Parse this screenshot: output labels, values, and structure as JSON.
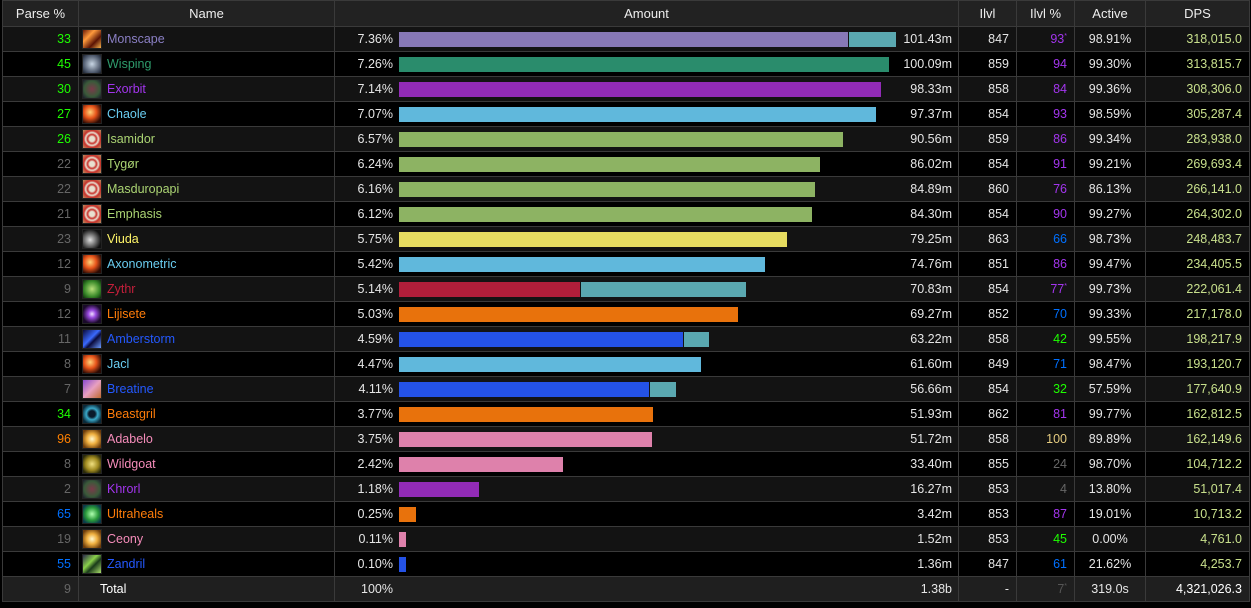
{
  "colors": {
    "parse_gray": "#666666",
    "parse_green": "#1eff00",
    "parse_blue": "#0070ff",
    "parse_purple": "#a335ee",
    "parse_orange": "#ff8000",
    "parse_gold": "#e5cc80",
    "dps_text": "#c8e08c",
    "pet_segment": "#5aa8b0"
  },
  "header": {
    "parse": "Parse %",
    "name": "Name",
    "amount": "Amount",
    "ilvl": "Ilvl",
    "ilvl_pct": "Ilvl %",
    "active": "Active",
    "dps": "DPS"
  },
  "max_bar_value": 101.43,
  "rows": [
    {
      "parse": "33",
      "parse_color": "#1eff00",
      "name": "Monscape",
      "name_color": "#8a7fc4",
      "icon": "fire-streak-icon",
      "icon_bg": "linear-gradient(135deg,#6b1a06,#ff9a3c,#5a1304,#f6b04a)",
      "pct": "7.36%",
      "segments": [
        {
          "value": 91.7,
          "color": "#8778b6"
        },
        {
          "value": 9.73,
          "color": "#5aa8b0"
        }
      ],
      "amount": "101.43m",
      "ilvl": "847",
      "ilvl_pct": "93",
      "ilvl_pct_color": "#a335ee",
      "ilvl_mark": "*",
      "active": "98.91%",
      "dps": "318,015.0"
    },
    {
      "parse": "45",
      "parse_color": "#1eff00",
      "name": "Wisping",
      "name_color": "#2e9b6c",
      "icon": "beast-face-icon",
      "icon_bg": "radial-gradient(circle,#c9d6e4,#4a5568 70%,#1a202c)",
      "pct": "7.26%",
      "segments": [
        {
          "value": 100.09,
          "color": "#2a8c6c"
        }
      ],
      "amount": "100.09m",
      "ilvl": "859",
      "ilvl_pct": "94",
      "ilvl_pct_color": "#a335ee",
      "ilvl_mark": "",
      "active": "99.30%",
      "dps": "313,815.7"
    },
    {
      "parse": "30",
      "parse_color": "#1eff00",
      "name": "Exorbit",
      "name_color": "#a335ee",
      "icon": "demon-face-icon",
      "icon_bg": "radial-gradient(circle,#7a3a4a,#3a5a3a 60%,#1a1a2a)",
      "pct": "7.14%",
      "segments": [
        {
          "value": 98.33,
          "color": "#922bb7"
        }
      ],
      "amount": "98.33m",
      "ilvl": "858",
      "ilvl_pct": "84",
      "ilvl_pct_color": "#a335ee",
      "ilvl_mark": "",
      "active": "99.36%",
      "dps": "308,306.0"
    },
    {
      "parse": "27",
      "parse_color": "#1eff00",
      "name": "Chaole",
      "name_color": "#69ccf0",
      "icon": "fireball-icon",
      "icon_bg": "radial-gradient(circle at 40% 40%,#ffd27a,#e8541a 40%,#2a0a04 80%)",
      "pct": "7.07%",
      "segments": [
        {
          "value": 97.37,
          "color": "#60b8dc"
        }
      ],
      "amount": "97.37m",
      "ilvl": "854",
      "ilvl_pct": "93",
      "ilvl_pct_color": "#a335ee",
      "ilvl_mark": "",
      "active": "98.59%",
      "dps": "305,287.4"
    },
    {
      "parse": "26",
      "parse_color": "#1eff00",
      "name": "Isamidor",
      "name_color": "#abd473",
      "icon": "target-icon",
      "icon_bg": "radial-gradient(circle,#e8e0d0 20%,#c8302a 35%,#e8e0d0 50%,#c8302a 65%,#b89060)",
      "pct": "6.57%",
      "segments": [
        {
          "value": 90.56,
          "color": "#8db363"
        }
      ],
      "amount": "90.56m",
      "ilvl": "859",
      "ilvl_pct": "86",
      "ilvl_pct_color": "#a335ee",
      "ilvl_mark": "",
      "active": "99.34%",
      "dps": "283,938.0"
    },
    {
      "parse": "22",
      "parse_color": "#666666",
      "name": "Tygør",
      "name_color": "#abd473",
      "icon": "target-icon",
      "icon_bg": "radial-gradient(circle,#e8e0d0 20%,#c8302a 35%,#e8e0d0 50%,#c8302a 65%,#b89060)",
      "pct": "6.24%",
      "segments": [
        {
          "value": 86.02,
          "color": "#8db363"
        }
      ],
      "amount": "86.02m",
      "ilvl": "854",
      "ilvl_pct": "91",
      "ilvl_pct_color": "#a335ee",
      "ilvl_mark": "",
      "active": "99.21%",
      "dps": "269,693.4"
    },
    {
      "parse": "22",
      "parse_color": "#666666",
      "name": "Masduropapi",
      "name_color": "#abd473",
      "icon": "target-icon",
      "icon_bg": "radial-gradient(circle,#e8e0d0 20%,#c8302a 35%,#e8e0d0 50%,#c8302a 65%,#b89060)",
      "pct": "6.16%",
      "segments": [
        {
          "value": 84.89,
          "color": "#8db363"
        }
      ],
      "amount": "84.89m",
      "ilvl": "860",
      "ilvl_pct": "76",
      "ilvl_pct_color": "#a335ee",
      "ilvl_mark": "",
      "active": "86.13%",
      "dps": "266,141.0"
    },
    {
      "parse": "21",
      "parse_color": "#666666",
      "name": "Emphasis",
      "name_color": "#abd473",
      "icon": "target-icon",
      "icon_bg": "radial-gradient(circle,#e8e0d0 20%,#c8302a 35%,#e8e0d0 50%,#c8302a 65%,#b89060)",
      "pct": "6.12%",
      "segments": [
        {
          "value": 84.3,
          "color": "#8db363"
        }
      ],
      "amount": "84.30m",
      "ilvl": "854",
      "ilvl_pct": "90",
      "ilvl_pct_color": "#a335ee",
      "ilvl_mark": "",
      "active": "99.27%",
      "dps": "264,302.0"
    },
    {
      "parse": "23",
      "parse_color": "#666666",
      "name": "Viuda",
      "name_color": "#fff569",
      "icon": "dagger-icon",
      "icon_bg": "radial-gradient(circle at 40% 55%,#e0e0e0,#707070 40%,#101010 75%)",
      "pct": "5.75%",
      "segments": [
        {
          "value": 79.25,
          "color": "#e6dc60"
        }
      ],
      "amount": "79.25m",
      "ilvl": "863",
      "ilvl_pct": "66",
      "ilvl_pct_color": "#0070ff",
      "ilvl_mark": "",
      "active": "98.73%",
      "dps": "248,483.7"
    },
    {
      "parse": "12",
      "parse_color": "#666666",
      "name": "Axonometric",
      "name_color": "#69ccf0",
      "icon": "fireball-icon",
      "icon_bg": "radial-gradient(circle at 40% 40%,#ffd27a,#e8541a 40%,#2a0a04 80%)",
      "pct": "5.42%",
      "segments": [
        {
          "value": 74.76,
          "color": "#60b8dc"
        }
      ],
      "amount": "74.76m",
      "ilvl": "851",
      "ilvl_pct": "86",
      "ilvl_pct_color": "#a335ee",
      "ilvl_mark": "",
      "active": "99.47%",
      "dps": "234,405.5"
    },
    {
      "parse": "9",
      "parse_color": "#666666",
      "name": "Zythr",
      "name_color": "#c41f3b",
      "icon": "skull-icon",
      "icon_bg": "radial-gradient(circle,#b8e07a,#3a8a2a 60%,#0a2a0a)",
      "pct": "5.14%",
      "segments": [
        {
          "value": 36.9,
          "color": "#b01e3a"
        },
        {
          "value": 33.93,
          "color": "#5aa8b0"
        }
      ],
      "amount": "70.83m",
      "ilvl": "854",
      "ilvl_pct": "77",
      "ilvl_pct_color": "#a335ee",
      "ilvl_mark": "*",
      "active": "99.73%",
      "dps": "222,061.4"
    },
    {
      "parse": "12",
      "parse_color": "#666666",
      "name": "Lijisete",
      "name_color": "#ff7d0a",
      "icon": "arcane-burst-icon",
      "icon_bg": "radial-gradient(circle,#f0e0ff,#9a4ae0 30%,#1a0a2a 75%)",
      "pct": "5.03%",
      "segments": [
        {
          "value": 69.27,
          "color": "#e8720c"
        }
      ],
      "amount": "69.27m",
      "ilvl": "852",
      "ilvl_pct": "70",
      "ilvl_pct_color": "#0070ff",
      "ilvl_mark": "",
      "active": "99.33%",
      "dps": "217,178.0"
    },
    {
      "parse": "11",
      "parse_color": "#666666",
      "name": "Amberstorm",
      "name_color": "#2459ff",
      "icon": "lightning-icon",
      "icon_bg": "linear-gradient(135deg,#0a0a3a,#3a6aff 45%,#0a0a3a 60%,#6a9aff)",
      "pct": "4.59%",
      "segments": [
        {
          "value": 58.0,
          "color": "#2452e6"
        },
        {
          "value": 5.22,
          "color": "#5aa8b0"
        }
      ],
      "amount": "63.22m",
      "ilvl": "858",
      "ilvl_pct": "42",
      "ilvl_pct_color": "#1eff00",
      "ilvl_mark": "",
      "active": "99.55%",
      "dps": "198,217.9"
    },
    {
      "parse": "8",
      "parse_color": "#666666",
      "name": "Jacl",
      "name_color": "#69ccf0",
      "icon": "fireball-icon",
      "icon_bg": "radial-gradient(circle at 40% 40%,#ffd27a,#e8541a 40%,#2a0a04 80%)",
      "pct": "4.47%",
      "segments": [
        {
          "value": 61.6,
          "color": "#60b8dc"
        }
      ],
      "amount": "61.60m",
      "ilvl": "849",
      "ilvl_pct": "71",
      "ilvl_pct_color": "#0070ff",
      "ilvl_mark": "",
      "active": "98.47%",
      "dps": "193,120.7"
    },
    {
      "parse": "7",
      "parse_color": "#666666",
      "name": "Breatine",
      "name_color": "#2459ff",
      "icon": "hammer-icon",
      "icon_bg": "linear-gradient(135deg,#8a4ad0,#e8a0c0 50%,#c06a30)",
      "pct": "4.11%",
      "segments": [
        {
          "value": 51.1,
          "color": "#2452e6"
        },
        {
          "value": 5.56,
          "color": "#5aa8b0"
        }
      ],
      "amount": "56.66m",
      "ilvl": "854",
      "ilvl_pct": "32",
      "ilvl_pct_color": "#1eff00",
      "ilvl_mark": "",
      "active": "57.59%",
      "dps": "177,640.9"
    },
    {
      "parse": "34",
      "parse_color": "#1eff00",
      "name": "Beastgril",
      "name_color": "#ff7d0a",
      "icon": "paw-icon",
      "icon_bg": "radial-gradient(circle,#0a1a2a 25%,#3aa8c8 45%,#0a2a3a 80%)",
      "pct": "3.77%",
      "segments": [
        {
          "value": 51.93,
          "color": "#e8720c"
        }
      ],
      "amount": "51.93m",
      "ilvl": "862",
      "ilvl_pct": "81",
      "ilvl_pct_color": "#a335ee",
      "ilvl_mark": "",
      "active": "99.77%",
      "dps": "162,812.5"
    },
    {
      "parse": "96",
      "parse_color": "#ff8000",
      "name": "Adabelo",
      "name_color": "#f58cba",
      "icon": "holy-light-icon",
      "icon_bg": "radial-gradient(circle,#fff8d0,#f0b040 40%,#6a3a0a 85%)",
      "pct": "3.75%",
      "segments": [
        {
          "value": 51.72,
          "color": "#de81ab"
        }
      ],
      "amount": "51.72m",
      "ilvl": "858",
      "ilvl_pct": "100",
      "ilvl_pct_color": "#e5cc80",
      "ilvl_mark": "",
      "active": "89.89%",
      "dps": "162,149.6"
    },
    {
      "parse": "8",
      "parse_color": "#666666",
      "name": "Wildgoat",
      "name_color": "#f58cba",
      "icon": "shield-icon",
      "icon_bg": "radial-gradient(ellipse,#f0e080,#a08a20 50%,#2a2a0a 85%)",
      "pct": "2.42%",
      "segments": [
        {
          "value": 33.4,
          "color": "#de81ab"
        }
      ],
      "amount": "33.40m",
      "ilvl": "855",
      "ilvl_pct": "24",
      "ilvl_pct_color": "#666666",
      "ilvl_mark": "",
      "active": "98.70%",
      "dps": "104,712.2"
    },
    {
      "parse": "2",
      "parse_color": "#666666",
      "name": "Khrorl",
      "name_color": "#a335ee",
      "icon": "demon-face-icon",
      "icon_bg": "radial-gradient(circle,#7a3a4a,#3a5a3a 60%,#1a1a2a)",
      "pct": "1.18%",
      "segments": [
        {
          "value": 16.27,
          "color": "#922bb7"
        }
      ],
      "amount": "16.27m",
      "ilvl": "853",
      "ilvl_pct": "4",
      "ilvl_pct_color": "#666666",
      "ilvl_mark": "",
      "active": "13.80%",
      "dps": "51,017.4"
    },
    {
      "parse": "65",
      "parse_color": "#0070ff",
      "name": "Ultraheals",
      "name_color": "#ff7d0a",
      "icon": "leaf-icon",
      "icon_bg": "radial-gradient(circle,#b0ffb0,#2a9a3a 50%,#0a3a4a 85%)",
      "pct": "0.25%",
      "segments": [
        {
          "value": 3.42,
          "color": "#e8720c"
        }
      ],
      "amount": "3.42m",
      "ilvl": "853",
      "ilvl_pct": "87",
      "ilvl_pct_color": "#a335ee",
      "ilvl_mark": "",
      "active": "19.01%",
      "dps": "10,713.2"
    },
    {
      "parse": "19",
      "parse_color": "#666666",
      "name": "Ceony",
      "name_color": "#f58cba",
      "icon": "holy-light-icon",
      "icon_bg": "radial-gradient(circle,#fff8d0,#f0b040 40%,#6a3a0a 85%)",
      "pct": "0.11%",
      "segments": [
        {
          "value": 1.52,
          "color": "#de81ab"
        }
      ],
      "amount": "1.52m",
      "ilvl": "853",
      "ilvl_pct": "45",
      "ilvl_pct_color": "#1eff00",
      "ilvl_mark": "",
      "active": "0.00%",
      "dps": "4,761.0"
    },
    {
      "parse": "55",
      "parse_color": "#0070ff",
      "name": "Zandril",
      "name_color": "#2459ff",
      "icon": "claw-icon",
      "icon_bg": "linear-gradient(135deg,#2a2a4a,#8ad04a 40%,#1a3a1a 60%,#aae06a)",
      "pct": "0.10%",
      "segments": [
        {
          "value": 1.36,
          "color": "#2452e6"
        }
      ],
      "amount": "1.36m",
      "ilvl": "847",
      "ilvl_pct": "61",
      "ilvl_pct_color": "#0070ff",
      "ilvl_mark": "",
      "active": "21.62%",
      "dps": "4,253.7"
    }
  ],
  "total": {
    "parse": "9",
    "label": "Total",
    "pct": "100%",
    "amount": "1.38b",
    "ilvl": "-",
    "ilvl_pct": "7",
    "ilvl_mark": "*",
    "active": "319.0s",
    "dps": "4,321,026.3"
  }
}
